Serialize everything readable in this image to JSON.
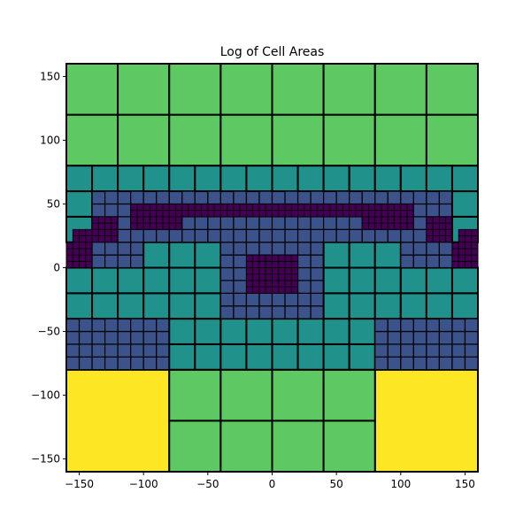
{
  "chart_data": {
    "type": "heatmap",
    "title": "Log of Cell Areas",
    "xlabel": "",
    "ylabel": "",
    "xlim": [
      -160,
      160
    ],
    "ylim": [
      -160,
      160
    ],
    "xticks": [
      -150,
      -100,
      -50,
      0,
      50,
      100,
      150
    ],
    "yticks": [
      -150,
      -100,
      -50,
      0,
      50,
      100,
      150
    ],
    "grid": false,
    "legend": "none",
    "colormap": "viridis",
    "level_colors": {
      "5": "#440154",
      "6": "#3b528b",
      "7": "#21918c",
      "8": "#5ec962",
      "9": "#fde725"
    },
    "cell_border_color": "#000000",
    "rect_cells": [
      {
        "x0": -160,
        "x1": -80,
        "y0": -160,
        "y1": -80,
        "level": 9
      },
      {
        "x0": 80,
        "x1": 160,
        "y0": -160,
        "y1": -80,
        "level": 9
      },
      {
        "x0": -80,
        "x1": -40,
        "y0": -160,
        "y1": -120,
        "level": 8
      },
      {
        "x0": -40,
        "x1": 0,
        "y0": -160,
        "y1": -120,
        "level": 8
      },
      {
        "x0": 0,
        "x1": 40,
        "y0": -160,
        "y1": -120,
        "level": 8
      },
      {
        "x0": 40,
        "x1": 80,
        "y0": -160,
        "y1": -120,
        "level": 8
      },
      {
        "x0": -80,
        "x1": -40,
        "y0": -120,
        "y1": -80,
        "level": 8
      },
      {
        "x0": -40,
        "x1": 0,
        "y0": -120,
        "y1": -80,
        "level": 8
      },
      {
        "x0": 0,
        "x1": 40,
        "y0": -120,
        "y1": -80,
        "level": 8
      },
      {
        "x0": 40,
        "x1": 80,
        "y0": -120,
        "y1": -80,
        "level": 8
      },
      {
        "x0": -160,
        "x1": -120,
        "y0": -80,
        "y1": -40,
        "level": 8
      },
      {
        "x0": -120,
        "x1": -80,
        "y0": -80,
        "y1": -40,
        "level": 8
      },
      {
        "x0": -80,
        "x1": -40,
        "y0": -80,
        "y1": -40,
        "level": 8
      },
      {
        "x0": 40,
        "x1": 80,
        "y0": -80,
        "y1": -40,
        "level": 8
      },
      {
        "x0": 80,
        "x1": 120,
        "y0": -80,
        "y1": -40,
        "level": 8
      },
      {
        "x0": 120,
        "x1": 160,
        "y0": -80,
        "y1": -40,
        "level": 8
      },
      {
        "x0": -160,
        "x1": -120,
        "y0": 80,
        "y1": 120,
        "level": 8
      },
      {
        "x0": -120,
        "x1": -80,
        "y0": 80,
        "y1": 120,
        "level": 8
      },
      {
        "x0": -80,
        "x1": -40,
        "y0": 80,
        "y1": 120,
        "level": 8
      },
      {
        "x0": -40,
        "x1": 0,
        "y0": 80,
        "y1": 120,
        "level": 8
      },
      {
        "x0": 0,
        "x1": 40,
        "y0": 80,
        "y1": 120,
        "level": 8
      },
      {
        "x0": 40,
        "x1": 80,
        "y0": 80,
        "y1": 120,
        "level": 8
      },
      {
        "x0": 80,
        "x1": 120,
        "y0": 80,
        "y1": 120,
        "level": 8
      },
      {
        "x0": 120,
        "x1": 160,
        "y0": 80,
        "y1": 120,
        "level": 8
      },
      {
        "x0": -160,
        "x1": -120,
        "y0": 120,
        "y1": 160,
        "level": 8
      },
      {
        "x0": -120,
        "x1": -80,
        "y0": 120,
        "y1": 160,
        "level": 8
      },
      {
        "x0": -80,
        "x1": -40,
        "y0": 120,
        "y1": 160,
        "level": 8
      },
      {
        "x0": -40,
        "x1": 0,
        "y0": 120,
        "y1": 160,
        "level": 8
      },
      {
        "x0": 0,
        "x1": 40,
        "y0": 120,
        "y1": 160,
        "level": 8
      },
      {
        "x0": 40,
        "x1": 80,
        "y0": 120,
        "y1": 160,
        "level": 8
      },
      {
        "x0": 80,
        "x1": 120,
        "y0": 120,
        "y1": 160,
        "level": 8
      },
      {
        "x0": 120,
        "x1": 160,
        "y0": 120,
        "y1": 160,
        "level": 8
      }
    ],
    "grid_cells": {
      "x0": -160,
      "y0": -80,
      "cell_size": 20,
      "ncols": 16,
      "nrows": 8,
      "rows_bottom_to_top": [
        "6666777777776666",
        "6666777777776666",
        "7777777777777777",
        "7777777777777777",
        "7777777777777777",
        "7777777777777777",
        "7777777777777777",
        "7777777777777777"
      ]
    },
    "refinements": {
      "level_6_notes": "20-unit cells refined into 10-unit (level 6) and 5-unit (level 5) subcells",
      "level6_bands": [
        {
          "y0": -40,
          "y1": 60,
          "x0": -140,
          "x1": 140,
          "level": 6
        }
      ],
      "level7_restore": [
        {
          "x0": -160,
          "x1": -140,
          "y0": -40,
          "y1": -20
        },
        {
          "x0": 140,
          "x1": 160,
          "y0": -40,
          "y1": -20
        },
        {
          "x0": -160,
          "x1": -140,
          "y0": 40,
          "y1": 60
        },
        {
          "x0": 140,
          "x1": 160,
          "y0": 40,
          "y1": 60
        },
        {
          "x0": -140,
          "x1": -100,
          "y0": -40,
          "y1": -20
        },
        {
          "x0": -100,
          "x1": -40,
          "y0": -40,
          "y1": -20
        },
        {
          "x0": 40,
          "x1": 100,
          "y0": -40,
          "y1": -20
        },
        {
          "x0": 100,
          "x1": 140,
          "y0": -40,
          "y1": -20
        },
        {
          "x0": -140,
          "x1": -100,
          "y0": -20,
          "y1": 0
        },
        {
          "x0": -100,
          "x1": -40,
          "y0": -20,
          "y1": 20
        },
        {
          "x0": 40,
          "x1": 100,
          "y0": -20,
          "y1": 20
        },
        {
          "x0": 100,
          "x1": 140,
          "y0": -20,
          "y1": 0
        }
      ],
      "level5_regions": [
        {
          "x0": -160,
          "x1": -140,
          "y0": 0,
          "y1": 30
        },
        {
          "x0": -140,
          "x1": -120,
          "y0": 20,
          "y1": 40
        },
        {
          "x0": -110,
          "x1": -70,
          "y0": 30,
          "y1": 50
        },
        {
          "x0": -70,
          "x1": 70,
          "y0": 40,
          "y1": 50
        },
        {
          "x0": 70,
          "x1": 110,
          "y0": 30,
          "y1": 50
        },
        {
          "x0": 120,
          "x1": 140,
          "y0": 20,
          "y1": 40
        },
        {
          "x0": 140,
          "x1": 160,
          "y0": 0,
          "y1": 30
        },
        {
          "x0": -20,
          "x1": 20,
          "y0": -20,
          "y1": 10
        }
      ]
    }
  }
}
